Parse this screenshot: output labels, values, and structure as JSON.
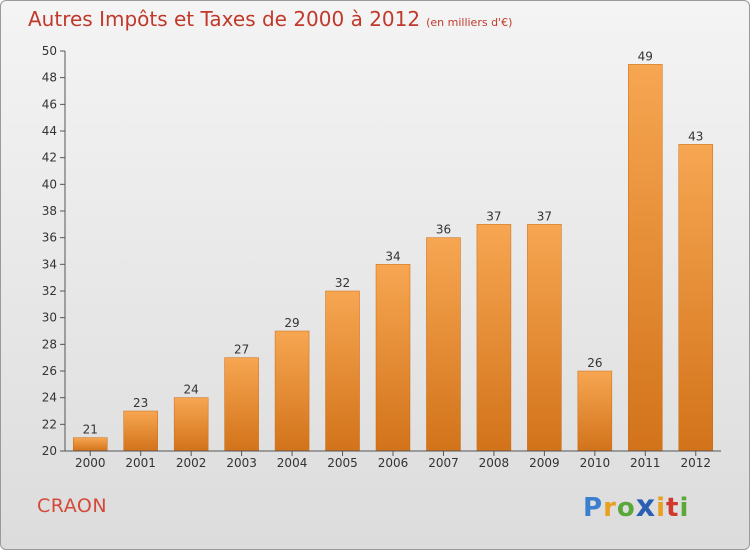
{
  "header": {
    "title": "Autres Impôts et Taxes de 2000 à 2012",
    "unit": "(en milliers d'€)"
  },
  "footer": {
    "town": "CRAON",
    "brand": "Proxiti"
  },
  "chart_data": {
    "type": "bar",
    "title": "Autres Impôts et Taxes de 2000 à 2012",
    "subtitle": "(en milliers d'€)",
    "xlabel": "",
    "ylabel": "",
    "categories": [
      "2000",
      "2001",
      "2002",
      "2003",
      "2004",
      "2005",
      "2006",
      "2007",
      "2008",
      "2009",
      "2010",
      "2011",
      "2012"
    ],
    "values": [
      21,
      23,
      24,
      27,
      29,
      32,
      34,
      36,
      37,
      37,
      26,
      49,
      43
    ],
    "ylim": [
      20,
      50
    ],
    "yticks": [
      20,
      22,
      24,
      26,
      28,
      30,
      32,
      34,
      36,
      38,
      40,
      42,
      44,
      46,
      48,
      50
    ],
    "grid": false,
    "legend": "none",
    "colors": {
      "bar_light": "#f7a652",
      "bar_dark": "#d2731a",
      "axis": "#555555",
      "text": "#333333"
    }
  }
}
